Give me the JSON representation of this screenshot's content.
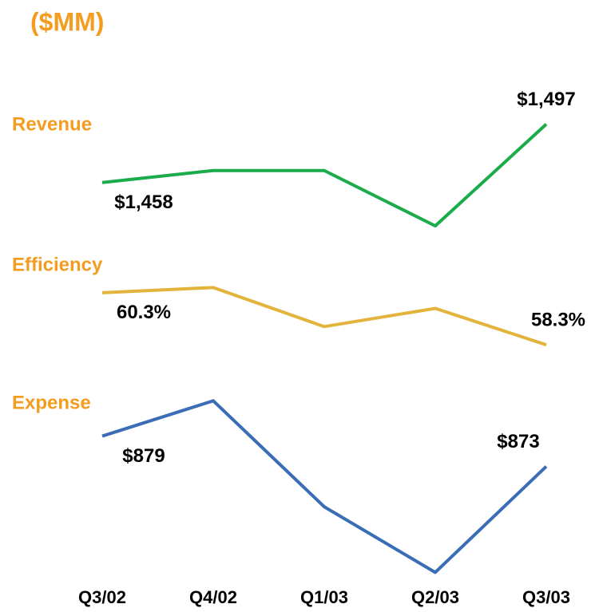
{
  "chart_data": {
    "type": "line",
    "title": "($MM)",
    "categories": [
      "Q3/02",
      "Q4/02",
      "Q1/03",
      "Q2/03",
      "Q3/03"
    ],
    "series": [
      {
        "name": "Revenue",
        "color": "#1aab4a",
        "values": [
          1458,
          1466,
          1466,
          1429,
          1497
        ],
        "value_labels": [
          "$1,458",
          null,
          null,
          null,
          "$1,497"
        ],
        "ylim": [
          1420,
          1500
        ]
      },
      {
        "name": "Efficiency",
        "color": "#e2b43c",
        "values": [
          60.3,
          60.5,
          59.0,
          59.7,
          58.3
        ],
        "value_labels": [
          "60.3%",
          null,
          null,
          null,
          "58.3%"
        ],
        "ylim": [
          58,
          61
        ]
      },
      {
        "name": "Expense",
        "color": "#3a6db5",
        "values": [
          879,
          886,
          865,
          852,
          873
        ],
        "value_labels": [
          "$879",
          null,
          null,
          null,
          "$873"
        ],
        "ylim": [
          850,
          890
        ]
      }
    ]
  }
}
